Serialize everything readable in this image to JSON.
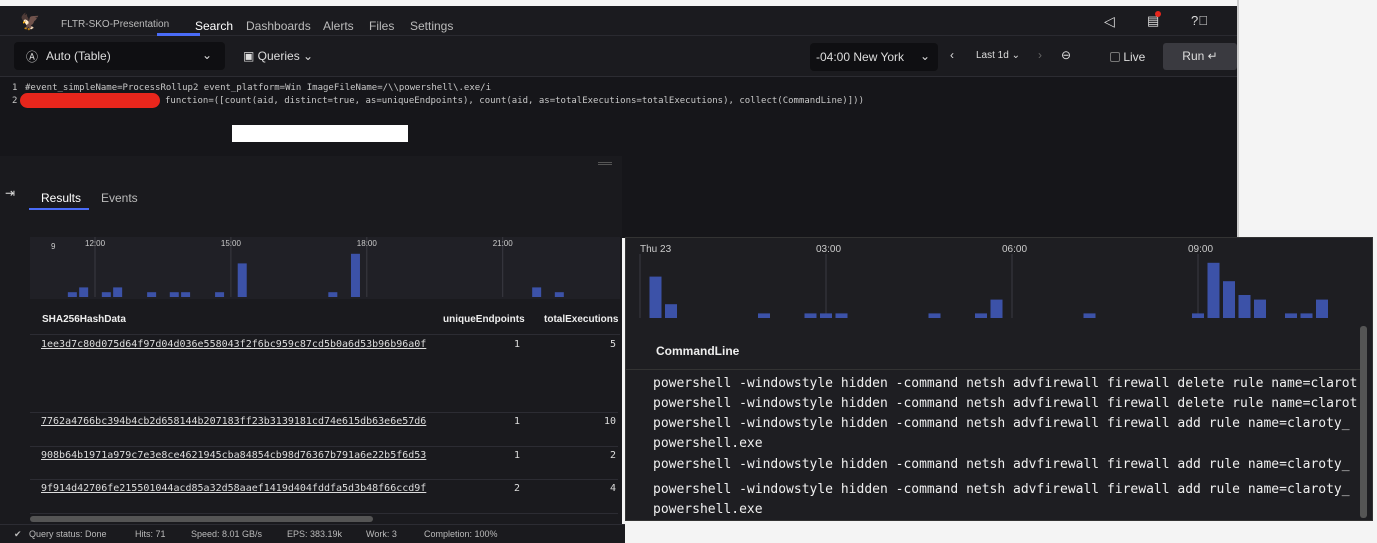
{
  "header": {
    "org": "FLTR-SKO-Presentation",
    "nav": [
      "Search",
      "Dashboards",
      "Alerts",
      "Files",
      "Settings"
    ],
    "active": "Search"
  },
  "toolbar": {
    "mode": "Auto (Table)",
    "queries": "Queries",
    "timezone": "-04:00 New York",
    "range": "Last 1d",
    "live": "Live",
    "run": "Run ↵"
  },
  "editor": {
    "line_numbers": [
      "1",
      "2"
    ],
    "line1": "#event_simpleName=ProcessRollup2 event_platform=Win ImageFileName=/\\\\powershell\\.exe/i",
    "line2": "function=([count(aid, distinct=true, as=uniqueEndpoints), count(aid, as=totalExecutions=totalExecutions), collect(CommandLine)]))"
  },
  "tabs": {
    "results": "Results",
    "events": "Events"
  },
  "chart_data": [
    {
      "type": "bar",
      "ymax_label": "9",
      "xticks": [
        "12:00",
        "15:00",
        "18:00",
        "21:00"
      ],
      "bars": [
        {
          "t": "11:30",
          "v": 1
        },
        {
          "t": "11:45",
          "v": 2
        },
        {
          "t": "12:15",
          "v": 1
        },
        {
          "t": "12:30",
          "v": 2
        },
        {
          "t": "13:15",
          "v": 1
        },
        {
          "t": "13:45",
          "v": 1
        },
        {
          "t": "14:00",
          "v": 1
        },
        {
          "t": "14:45",
          "v": 1
        },
        {
          "t": "15:15",
          "v": 7
        },
        {
          "t": "17:15",
          "v": 1
        },
        {
          "t": "17:45",
          "v": 9
        },
        {
          "t": "21:45",
          "v": 2
        },
        {
          "t": "22:15",
          "v": 1
        }
      ]
    },
    {
      "type": "bar",
      "xticks": [
        "Thu 23",
        "03:00",
        "06:00",
        "09:00"
      ],
      "bars": [
        {
          "t": "00:15",
          "v": 9
        },
        {
          "t": "00:30",
          "v": 3
        },
        {
          "t": "02:00",
          "v": 1
        },
        {
          "t": "02:45",
          "v": 1
        },
        {
          "t": "03:00",
          "v": 1
        },
        {
          "t": "03:15",
          "v": 1
        },
        {
          "t": "04:45",
          "v": 1
        },
        {
          "t": "05:30",
          "v": 1
        },
        {
          "t": "05:45",
          "v": 4
        },
        {
          "t": "07:15",
          "v": 1
        },
        {
          "t": "09:00",
          "v": 1
        },
        {
          "t": "09:15",
          "v": 12
        },
        {
          "t": "09:30",
          "v": 8
        },
        {
          "t": "09:45",
          "v": 5
        },
        {
          "t": "10:00",
          "v": 4
        },
        {
          "t": "10:30",
          "v": 1
        },
        {
          "t": "10:45",
          "v": 1
        },
        {
          "t": "11:00",
          "v": 4
        }
      ]
    }
  ],
  "table": {
    "headers": [
      "SHA256HashData",
      "uniqueEndpoints",
      "totalExecutions"
    ],
    "rows": [
      {
        "hash": "1ee3d7c80d075d64f97d04d036e558043f2f6bc959c87cd5b0a6d53b96b96a0f",
        "unique": "1",
        "total": "5"
      },
      {
        "hash": "7762a4766bc394b4cb2d658144b207183ff23b3139181cd74e615db63e6e57d6",
        "unique": "1",
        "total": "10"
      },
      {
        "hash": "908b64b1971a979c7e3e8ce4621945cba84854cb98d76367b791a6e22b5f6d53",
        "unique": "1",
        "total": "2"
      },
      {
        "hash": "9f914d42706fe215501044acd85a32d58aaef1419d404fddfa5d3b48f66ccd9f",
        "unique": "2",
        "total": "4"
      }
    ]
  },
  "commandline": {
    "header": "CommandLine",
    "lines": [
      "powershell -windowstyle hidden -command netsh advfirewall firewall delete rule name=claroty_",
      "powershell -windowstyle hidden -command netsh advfirewall firewall delete rule name=claroty_",
      "powershell -windowstyle hidden -command netsh advfirewall firewall add rule name=claroty_",
      "powershell.exe",
      "powershell -windowstyle hidden -command netsh advfirewall firewall add rule name=claroty_",
      "powershell -windowstyle hidden -command netsh advfirewall firewall add rule name=claroty_",
      "powershell.exe"
    ]
  },
  "status": {
    "query": "Query status: Done",
    "hits": "Hits: 71",
    "speed": "Speed: 8.01 GB/s",
    "eps": "EPS: 383.19k",
    "work": "Work: 3",
    "completion": "Completion: 100%"
  },
  "colors": {
    "bar": "#3c52a8",
    "redaction": "#e8261c",
    "accent": "#4a6cf7"
  }
}
